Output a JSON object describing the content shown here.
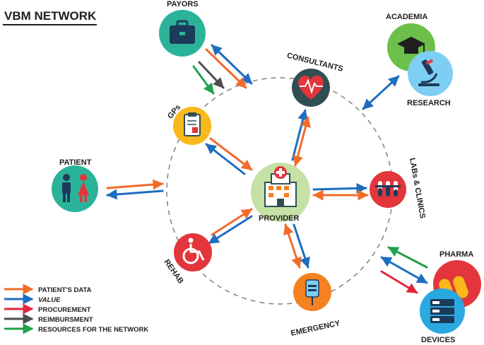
{
  "title": "VBM NETWORK",
  "nodes": {
    "provider": {
      "label": "PROVIDER",
      "icon": "hospital-icon",
      "color": "#c5e1a5"
    },
    "payors": {
      "label": "PAYORS",
      "icon": "briefcase-icon",
      "color": "#2bb39a"
    },
    "consultants": {
      "label": "CONSULTANTS",
      "icon": "heart-monitor-icon",
      "color": "#2f4f54"
    },
    "gps": {
      "label": "GPs",
      "icon": "medical-chart-icon",
      "color": "#f9b81b"
    },
    "patient": {
      "label": "PATIENT",
      "icon": "patients-icon",
      "color": "#2bb39a"
    },
    "rehab": {
      "label": "REHAB",
      "icon": "wheelchair-icon",
      "color": "#e2363c"
    },
    "emergency": {
      "label": "EMERGENCY",
      "icon": "iv-drip-icon",
      "color": "#f58220"
    },
    "labs": {
      "label": "LABs & CLINICS",
      "icon": "test-tubes-icon",
      "color": "#e2363c"
    },
    "academia": {
      "label": "ACADEMIA",
      "icon": "graduation-cap-icon",
      "color": "#6cc04a"
    },
    "research": {
      "label": "RESEARCH",
      "icon": "microscope-icon",
      "color": "#7ecef4"
    },
    "pharma": {
      "label": "PHARMA",
      "icon": "pills-icon",
      "color": "#e2363c"
    },
    "devices": {
      "label": "DEVICES",
      "icon": "server-rack-icon",
      "color": "#2aa8e0"
    }
  },
  "legend": [
    {
      "label": "PATIENT'S DATA",
      "color": "#f26b2a",
      "italic": false
    },
    {
      "label": "VALUE",
      "color": "#1f6dc0",
      "italic": true
    },
    {
      "label": "PROCUREMENT",
      "color": "#e2263a",
      "italic": false
    },
    {
      "label": "REIMBURSMENT",
      "color": "#4d4d4d",
      "italic": false
    },
    {
      "label": "RESOURCES FOR THE NETWORK",
      "color": "#22a04b",
      "italic": false
    }
  ],
  "colors": {
    "patients_data": "#f26b2a",
    "value": "#1f6dc0",
    "procurement": "#e2263a",
    "reimbursement": "#4d4d4d",
    "resources": "#22a04b",
    "ring": "#888888"
  }
}
